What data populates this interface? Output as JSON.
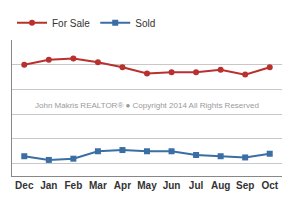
{
  "chart_data": {
    "type": "line",
    "categories": [
      "Dec",
      "Jan",
      "Feb",
      "Mar",
      "Apr",
      "May",
      "Jun",
      "Jul",
      "Aug",
      "Sep",
      "Oct"
    ],
    "series": [
      {
        "name": "For Sale",
        "color": "#b8312f",
        "marker": "circle",
        "values": [
          45,
          47,
          47.5,
          46,
          44,
          41.5,
          42,
          42,
          43,
          41,
          44
        ]
      },
      {
        "name": "Sold",
        "color": "#3a6ea5",
        "marker": "square",
        "values": [
          8,
          6.5,
          7,
          10,
          10.5,
          10,
          10,
          8.5,
          8,
          7.5,
          9
        ]
      }
    ],
    "ylim": [
      0,
      55
    ],
    "yticks": [
      5,
      15,
      25,
      35,
      45,
      55
    ],
    "grid": true,
    "legend": "top left",
    "tick_labels": "x",
    "annotations": [
      {
        "text": "John Makris REALTOR® ● Copyright 2014 All Rights Reserved"
      }
    ]
  }
}
